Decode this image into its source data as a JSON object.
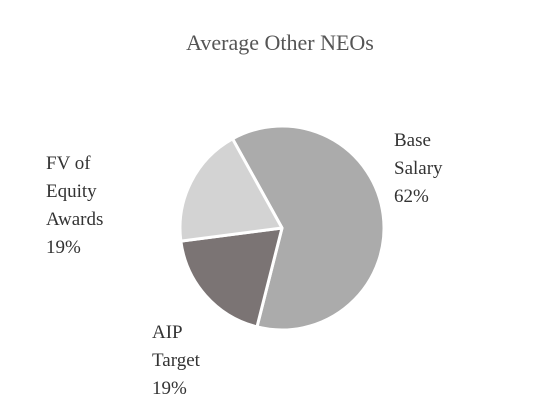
{
  "chart_data": {
    "type": "pie",
    "title": "Average Other NEOs",
    "slices": [
      {
        "name_lines": [
          "Base",
          "Salary"
        ],
        "label": "Base Salary",
        "value": 62,
        "value_label": "62%",
        "color": "#ababab"
      },
      {
        "name_lines": [
          "AIP",
          "Target"
        ],
        "label": "AIP Target",
        "value": 19,
        "value_label": "19%",
        "color": "#7b7474"
      },
      {
        "name_lines": [
          "FV of",
          "Equity",
          "Awards"
        ],
        "label": "FV of Equity Awards",
        "value": 19,
        "value_label": "19%",
        "color": "#d3d3d3"
      }
    ],
    "legend": "none",
    "slice_border_color": "#ffffff"
  }
}
